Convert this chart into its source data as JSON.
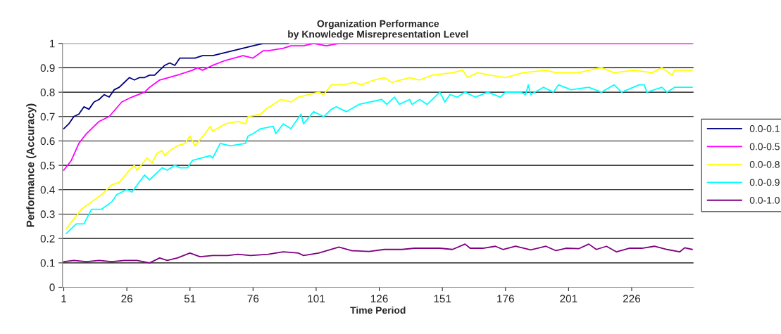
{
  "chart_data": {
    "type": "line",
    "title": "Organization Performance\nby Knowledge Misrepresentation Level",
    "xlabel": "Time Period",
    "ylabel": "Performance (Accuracy)",
    "xlim": [
      0.5,
      250.5
    ],
    "xticks": [
      1,
      26,
      51,
      76,
      101,
      126,
      151,
      176,
      201,
      226
    ],
    "ylim": [
      0,
      1
    ],
    "yticks": [
      0,
      0.1,
      0.2,
      0.3,
      0.4,
      0.5,
      0.6,
      0.7,
      0.8,
      0.9,
      1
    ],
    "grid": "y",
    "legend": "right",
    "marker": "none",
    "line_style": "solid",
    "series": [
      {
        "name": "0.0-0.1",
        "color": "#000080",
        "x": [
          1,
          3,
          5,
          7,
          9,
          11,
          13,
          15,
          17,
          19,
          21,
          23,
          25,
          27,
          29,
          31,
          33,
          35,
          37,
          39,
          41,
          43,
          45,
          47,
          50,
          53,
          56,
          60,
          64,
          68,
          72,
          76,
          80,
          90
        ],
        "values": [
          0.65,
          0.67,
          0.7,
          0.71,
          0.74,
          0.73,
          0.76,
          0.77,
          0.79,
          0.78,
          0.81,
          0.82,
          0.84,
          0.86,
          0.85,
          0.86,
          0.86,
          0.87,
          0.87,
          0.89,
          0.91,
          0.92,
          0.91,
          0.94,
          0.94,
          0.94,
          0.95,
          0.95,
          0.96,
          0.97,
          0.98,
          0.99,
          1.0,
          1.0
        ]
      },
      {
        "name": "0.0-0.5",
        "color": "#ff00ff",
        "x": [
          1,
          4,
          7,
          10,
          15,
          19,
          24,
          28,
          33,
          35,
          39,
          46,
          52,
          54,
          56,
          60,
          65,
          72,
          76,
          80,
          82,
          88,
          91,
          96,
          100,
          105,
          110,
          130,
          160,
          190,
          220,
          250
        ],
        "values": [
          0.48,
          0.52,
          0.59,
          0.63,
          0.68,
          0.7,
          0.76,
          0.78,
          0.8,
          0.82,
          0.85,
          0.87,
          0.89,
          0.9,
          0.89,
          0.91,
          0.93,
          0.95,
          0.94,
          0.97,
          0.97,
          0.98,
          0.99,
          0.99,
          1.0,
          0.99,
          1.0,
          1.0,
          1.0,
          1.0,
          1.0,
          1.0
        ]
      },
      {
        "name": "0.0-0.8",
        "color": "#ffff00",
        "x": [
          2,
          5,
          8,
          12,
          16,
          20,
          23,
          27,
          29,
          30,
          34,
          36,
          38,
          40,
          41,
          43,
          46,
          49,
          51,
          53,
          57,
          59,
          60,
          65,
          70,
          73,
          74,
          79,
          81,
          84,
          87,
          91,
          94,
          102,
          104,
          107,
          112,
          116,
          119,
          124,
          128,
          131,
          138,
          142,
          147,
          155,
          159,
          161,
          165,
          170,
          176,
          183,
          192,
          196,
          205,
          209,
          214,
          219,
          227,
          234,
          238,
          242,
          243,
          250
        ],
        "values": [
          0.24,
          0.28,
          0.32,
          0.35,
          0.38,
          0.42,
          0.43,
          0.48,
          0.5,
          0.48,
          0.53,
          0.51,
          0.55,
          0.56,
          0.54,
          0.56,
          0.58,
          0.59,
          0.62,
          0.58,
          0.63,
          0.66,
          0.64,
          0.67,
          0.68,
          0.67,
          0.7,
          0.71,
          0.73,
          0.75,
          0.77,
          0.76,
          0.78,
          0.8,
          0.79,
          0.83,
          0.83,
          0.84,
          0.83,
          0.85,
          0.86,
          0.84,
          0.86,
          0.85,
          0.87,
          0.88,
          0.89,
          0.86,
          0.88,
          0.87,
          0.86,
          0.88,
          0.89,
          0.88,
          0.88,
          0.89,
          0.9,
          0.88,
          0.89,
          0.88,
          0.9,
          0.87,
          0.89,
          0.89
        ]
      },
      {
        "name": "0.0-0.9",
        "color": "#00ffff",
        "x": [
          2,
          6,
          9,
          12,
          16,
          20,
          22,
          26,
          28,
          33,
          35,
          37,
          40,
          42,
          45,
          47,
          50,
          52,
          59,
          60,
          63,
          67,
          73,
          74,
          76,
          79,
          84,
          85,
          88,
          91,
          95,
          96,
          100,
          104,
          107,
          109,
          111,
          113,
          118,
          127,
          129,
          132,
          134,
          138,
          139,
          142,
          145,
          150,
          152,
          154,
          157,
          160,
          164,
          169,
          174,
          176,
          182,
          184,
          185,
          186,
          191,
          195,
          197,
          202,
          209,
          214,
          219,
          222,
          229,
          231,
          232,
          238,
          240,
          243,
          250
        ],
        "values": [
          0.22,
          0.26,
          0.26,
          0.32,
          0.32,
          0.35,
          0.38,
          0.4,
          0.39,
          0.46,
          0.44,
          0.46,
          0.49,
          0.48,
          0.5,
          0.49,
          0.49,
          0.52,
          0.54,
          0.53,
          0.59,
          0.58,
          0.59,
          0.62,
          0.63,
          0.65,
          0.66,
          0.63,
          0.67,
          0.65,
          0.71,
          0.67,
          0.72,
          0.7,
          0.73,
          0.74,
          0.73,
          0.72,
          0.75,
          0.77,
          0.75,
          0.78,
          0.75,
          0.77,
          0.75,
          0.77,
          0.75,
          0.8,
          0.76,
          0.79,
          0.78,
          0.8,
          0.78,
          0.8,
          0.78,
          0.8,
          0.8,
          0.79,
          0.83,
          0.79,
          0.82,
          0.8,
          0.83,
          0.81,
          0.82,
          0.8,
          0.83,
          0.8,
          0.83,
          0.83,
          0.8,
          0.82,
          0.8,
          0.82,
          0.82
        ]
      },
      {
        "name": "0.0-1.0",
        "color": "#800080",
        "x": [
          1,
          5,
          10,
          15,
          20,
          25,
          30,
          35,
          39,
          42,
          46,
          51,
          55,
          60,
          66,
          70,
          75,
          82,
          88,
          94,
          96,
          102,
          110,
          115,
          122,
          128,
          135,
          140,
          150,
          155,
          160,
          162,
          167,
          172,
          175,
          180,
          186,
          192,
          196,
          200,
          205,
          209,
          212,
          216,
          220,
          225,
          230,
          235,
          240,
          245,
          247,
          250
        ],
        "values": [
          0.105,
          0.11,
          0.105,
          0.11,
          0.105,
          0.11,
          0.11,
          0.1,
          0.12,
          0.11,
          0.12,
          0.14,
          0.125,
          0.13,
          0.13,
          0.135,
          0.13,
          0.135,
          0.145,
          0.14,
          0.13,
          0.14,
          0.165,
          0.15,
          0.147,
          0.155,
          0.155,
          0.16,
          0.16,
          0.155,
          0.177,
          0.16,
          0.16,
          0.168,
          0.155,
          0.168,
          0.153,
          0.168,
          0.15,
          0.16,
          0.158,
          0.177,
          0.155,
          0.168,
          0.145,
          0.16,
          0.16,
          0.168,
          0.155,
          0.145,
          0.162,
          0.155
        ]
      }
    ]
  }
}
